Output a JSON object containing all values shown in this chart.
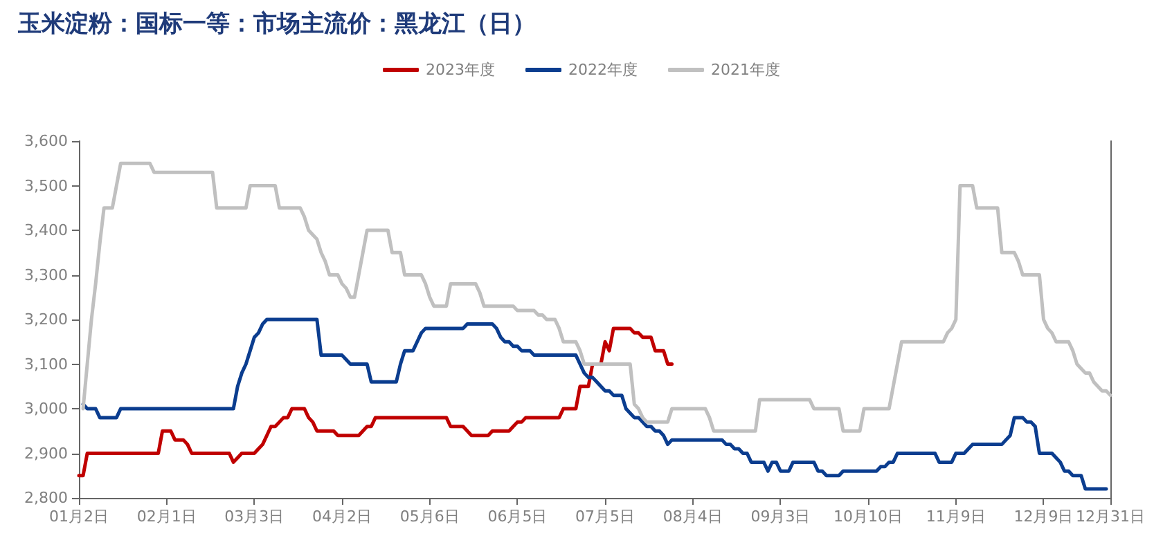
{
  "chart_data": {
    "type": "line",
    "title": "玉米淀粉：国标一等：市场主流价：黑龙江（日）",
    "legend": "top",
    "marker": "none",
    "line_style": "solid",
    "grid": false,
    "categories": [
      "01月2日",
      null,
      null,
      null,
      null,
      null,
      null,
      null,
      null,
      null,
      null,
      null,
      null,
      null,
      null,
      null,
      null,
      null,
      null,
      null,
      null,
      "02月1日",
      null,
      null,
      null,
      null,
      null,
      null,
      null,
      null,
      null,
      null,
      null,
      null,
      null,
      null,
      null,
      null,
      null,
      null,
      null,
      null,
      "03月3日",
      null,
      null,
      null,
      null,
      null,
      null,
      null,
      null,
      null,
      null,
      null,
      null,
      null,
      null,
      null,
      null,
      null,
      null,
      null,
      null,
      "04月2日",
      null,
      null,
      null,
      null,
      null,
      null,
      null,
      null,
      null,
      null,
      null,
      null,
      null,
      null,
      null,
      null,
      null,
      null,
      null,
      null,
      "05月6日",
      null,
      null,
      null,
      null,
      null,
      null,
      null,
      null,
      null,
      null,
      null,
      null,
      null,
      null,
      null,
      null,
      null,
      null,
      null,
      null,
      "06月5日",
      null,
      null,
      null,
      null,
      null,
      null,
      null,
      null,
      null,
      null,
      null,
      null,
      null,
      null,
      null,
      null,
      null,
      null,
      null,
      null,
      "07月5日",
      null,
      null,
      null,
      null,
      null,
      null,
      null,
      null,
      null,
      null,
      null,
      null,
      null,
      null,
      null,
      null,
      null,
      null,
      null,
      null,
      "08月4日",
      null,
      null,
      null,
      null,
      null,
      null,
      null,
      null,
      null,
      null,
      null,
      null,
      null,
      null,
      null,
      null,
      null,
      null,
      null,
      null,
      "09月3日",
      null,
      null,
      null,
      null,
      null,
      null,
      null,
      null,
      null,
      null,
      null,
      null,
      null,
      null,
      null,
      null,
      null,
      null,
      null,
      null,
      "10月10日",
      null,
      null,
      null,
      null,
      null,
      null,
      null,
      null,
      null,
      null,
      null,
      null,
      null,
      null,
      null,
      null,
      null,
      null,
      null,
      null,
      "11月9日",
      null,
      null,
      null,
      null,
      null,
      null,
      null,
      null,
      null,
      null,
      null,
      null,
      null,
      null,
      null,
      null,
      null,
      null,
      null,
      null,
      "12月9日",
      null,
      null,
      null,
      null,
      null,
      null,
      null,
      null,
      null,
      null,
      null,
      null,
      null,
      null,
      null,
      "12月31日"
    ],
    "ylim": [
      2800,
      3600
    ],
    "yticks": [
      {
        "value": 2800,
        "label": "2,800"
      },
      {
        "value": 2900,
        "label": "2,900"
      },
      {
        "value": 3000,
        "label": "3,000"
      },
      {
        "value": 3100,
        "label": "3,100"
      },
      {
        "value": 3200,
        "label": "3,200"
      },
      {
        "value": 3300,
        "label": "3,300"
      },
      {
        "value": 3400,
        "label": "3,400"
      },
      {
        "value": 3500,
        "label": "3,500"
      },
      {
        "value": 3600,
        "label": "3,600"
      }
    ],
    "series": [
      {
        "name": "2023年度",
        "color": "#c00000",
        "values": [
          2850,
          2850,
          2900,
          2900,
          2900,
          2900,
          2900,
          2900,
          2900,
          2900,
          2900,
          2900,
          2900,
          2900,
          2900,
          2900,
          2900,
          2900,
          2900,
          2900,
          2950,
          2950,
          2950,
          2930,
          2930,
          2930,
          2920,
          2900,
          2900,
          2900,
          2900,
          2900,
          2900,
          2900,
          2900,
          2900,
          2900,
          2880,
          2890,
          2900,
          2900,
          2900,
          2900,
          2910,
          2920,
          2940,
          2960,
          2960,
          2970,
          2980,
          2980,
          3000,
          3000,
          3000,
          3000,
          2980,
          2970,
          2950,
          2950,
          2950,
          2950,
          2950,
          2940,
          2940,
          2940,
          2940,
          2940,
          2940,
          2950,
          2960,
          2960,
          2980,
          2980,
          2980,
          2980,
          2980,
          2980,
          2980,
          2980,
          2980,
          2980,
          2980,
          2980,
          2980,
          2980,
          2980,
          2980,
          2980,
          2980,
          2960,
          2960,
          2960,
          2960,
          2950,
          2940,
          2940,
          2940,
          2940,
          2940,
          2950,
          2950,
          2950,
          2950,
          2950,
          2960,
          2970,
          2970,
          2980,
          2980,
          2980,
          2980,
          2980,
          2980,
          2980,
          2980,
          2980,
          3000,
          3000,
          3000,
          3000,
          3050,
          3050,
          3050,
          3100,
          3100,
          3100,
          3150,
          3130,
          3180,
          3180,
          3180,
          3180,
          3180,
          3170,
          3170,
          3160,
          3160,
          3160,
          3130,
          3130,
          3130,
          3100,
          3100,
          null,
          null,
          null,
          null,
          null,
          null,
          null,
          null,
          null,
          null,
          null,
          null,
          null,
          null,
          null,
          null,
          null,
          null,
          null,
          null,
          null,
          null,
          null,
          null,
          null,
          null,
          null,
          null,
          null,
          null,
          null,
          null,
          null,
          null,
          null,
          null,
          null,
          null,
          null,
          null,
          null,
          null,
          null,
          null,
          null,
          null,
          null,
          null,
          null,
          null,
          null,
          null,
          null,
          null,
          null,
          null,
          null,
          null,
          null,
          null,
          null,
          null,
          null,
          null,
          null,
          null,
          null,
          null,
          null,
          null,
          null,
          null,
          null,
          null,
          null,
          null,
          null,
          null,
          null,
          null,
          null,
          null,
          null,
          null,
          null,
          null,
          null,
          null,
          null,
          null,
          null,
          null,
          null,
          null,
          null,
          null,
          null,
          null,
          null,
          null,
          null,
          null,
          null,
          null,
          null
        ]
      },
      {
        "name": "2022年度",
        "color": "#0b3d8f",
        "values": [
          null,
          3010,
          3000,
          3000,
          3000,
          2980,
          2980,
          2980,
          2980,
          2980,
          3000,
          3000,
          3000,
          3000,
          3000,
          3000,
          3000,
          3000,
          3000,
          3000,
          3000,
          3000,
          3000,
          3000,
          3000,
          3000,
          3000,
          3000,
          3000,
          3000,
          3000,
          3000,
          3000,
          3000,
          3000,
          3000,
          3000,
          3000,
          3050,
          3080,
          3100,
          3130,
          3160,
          3170,
          3190,
          3200,
          3200,
          3200,
          3200,
          3200,
          3200,
          3200,
          3200,
          3200,
          3200,
          3200,
          3200,
          3200,
          3120,
          3120,
          3120,
          3120,
          3120,
          3120,
          3110,
          3100,
          3100,
          3100,
          3100,
          3100,
          3060,
          3060,
          3060,
          3060,
          3060,
          3060,
          3060,
          3100,
          3130,
          3130,
          3130,
          3150,
          3170,
          3180,
          3180,
          3180,
          3180,
          3180,
          3180,
          3180,
          3180,
          3180,
          3180,
          3190,
          3190,
          3190,
          3190,
          3190,
          3190,
          3190,
          3180,
          3160,
          3150,
          3150,
          3140,
          3140,
          3130,
          3130,
          3130,
          3120,
          3120,
          3120,
          3120,
          3120,
          3120,
          3120,
          3120,
          3120,
          3120,
          3120,
          3100,
          3080,
          3070,
          3070,
          3060,
          3050,
          3040,
          3040,
          3030,
          3030,
          3030,
          3000,
          2990,
          2980,
          2980,
          2970,
          2960,
          2960,
          2950,
          2950,
          2940,
          2920,
          2930,
          2930,
          2930,
          2930,
          2930,
          2930,
          2930,
          2930,
          2930,
          2930,
          2930,
          2930,
          2930,
          2920,
          2920,
          2910,
          2910,
          2900,
          2900,
          2880,
          2880,
          2880,
          2880,
          2860,
          2880,
          2880,
          2860,
          2860,
          2860,
          2880,
          2880,
          2880,
          2880,
          2880,
          2880,
          2860,
          2860,
          2850,
          2850,
          2850,
          2850,
          2860,
          2860,
          2860,
          2860,
          2860,
          2860,
          2860,
          2860,
          2860,
          2870,
          2870,
          2880,
          2880,
          2900,
          2900,
          2900,
          2900,
          2900,
          2900,
          2900,
          2900,
          2900,
          2900,
          2880,
          2880,
          2880,
          2880,
          2900,
          2900,
          2900,
          2910,
          2920,
          2920,
          2920,
          2920,
          2920,
          2920,
          2920,
          2920,
          2930,
          2940,
          2980,
          2980,
          2980,
          2970,
          2970,
          2960,
          2900,
          2900,
          2900,
          2900,
          2890,
          2880,
          2860,
          2860,
          2850,
          2850,
          2850,
          2820,
          2820,
          2820,
          2820,
          2820,
          2820,
          null
        ]
      },
      {
        "name": "2021年度",
        "color": "#c0c0c0",
        "values": [
          null,
          3000,
          3100,
          3200,
          3280,
          3370,
          3450,
          3450,
          3450,
          3500,
          3550,
          3550,
          3550,
          3550,
          3550,
          3550,
          3550,
          3550,
          3530,
          3530,
          3530,
          3530,
          3530,
          3530,
          3530,
          3530,
          3530,
          3530,
          3530,
          3530,
          3530,
          3530,
          3530,
          3450,
          3450,
          3450,
          3450,
          3450,
          3450,
          3450,
          3450,
          3500,
          3500,
          3500,
          3500,
          3500,
          3500,
          3500,
          3450,
          3450,
          3450,
          3450,
          3450,
          3450,
          3430,
          3400,
          3390,
          3380,
          3350,
          3330,
          3300,
          3300,
          3300,
          3280,
          3270,
          3250,
          3250,
          3300,
          3350,
          3400,
          3400,
          3400,
          3400,
          3400,
          3400,
          3350,
          3350,
          3350,
          3300,
          3300,
          3300,
          3300,
          3300,
          3280,
          3250,
          3230,
          3230,
          3230,
          3230,
          3280,
          3280,
          3280,
          3280,
          3280,
          3280,
          3280,
          3260,
          3230,
          3230,
          3230,
          3230,
          3230,
          3230,
          3230,
          3230,
          3220,
          3220,
          3220,
          3220,
          3220,
          3210,
          3210,
          3200,
          3200,
          3200,
          3180,
          3150,
          3150,
          3150,
          3150,
          3130,
          3100,
          3100,
          3100,
          3100,
          3100,
          3100,
          3100,
          3100,
          3100,
          3100,
          3100,
          3100,
          3010,
          3000,
          2980,
          2970,
          2970,
          2970,
          2970,
          2970,
          2970,
          3000,
          3000,
          3000,
          3000,
          3000,
          3000,
          3000,
          3000,
          3000,
          2980,
          2950,
          2950,
          2950,
          2950,
          2950,
          2950,
          2950,
          2950,
          2950,
          2950,
          2950,
          3020,
          3020,
          3020,
          3020,
          3020,
          3020,
          3020,
          3020,
          3020,
          3020,
          3020,
          3020,
          3020,
          3000,
          3000,
          3000,
          3000,
          3000,
          3000,
          3000,
          2950,
          2950,
          2950,
          2950,
          2950,
          3000,
          3000,
          3000,
          3000,
          3000,
          3000,
          3000,
          3050,
          3100,
          3150,
          3150,
          3150,
          3150,
          3150,
          3150,
          3150,
          3150,
          3150,
          3150,
          3150,
          3170,
          3180,
          3200,
          3500,
          3500,
          3500,
          3500,
          3450,
          3450,
          3450,
          3450,
          3450,
          3450,
          3350,
          3350,
          3350,
          3350,
          3330,
          3300,
          3300,
          3300,
          3300,
          3300,
          3200,
          3180,
          3170,
          3150,
          3150,
          3150,
          3150,
          3130,
          3100,
          3090,
          3080,
          3080,
          3060,
          3050,
          3040,
          3040,
          3030
        ]
      }
    ]
  }
}
